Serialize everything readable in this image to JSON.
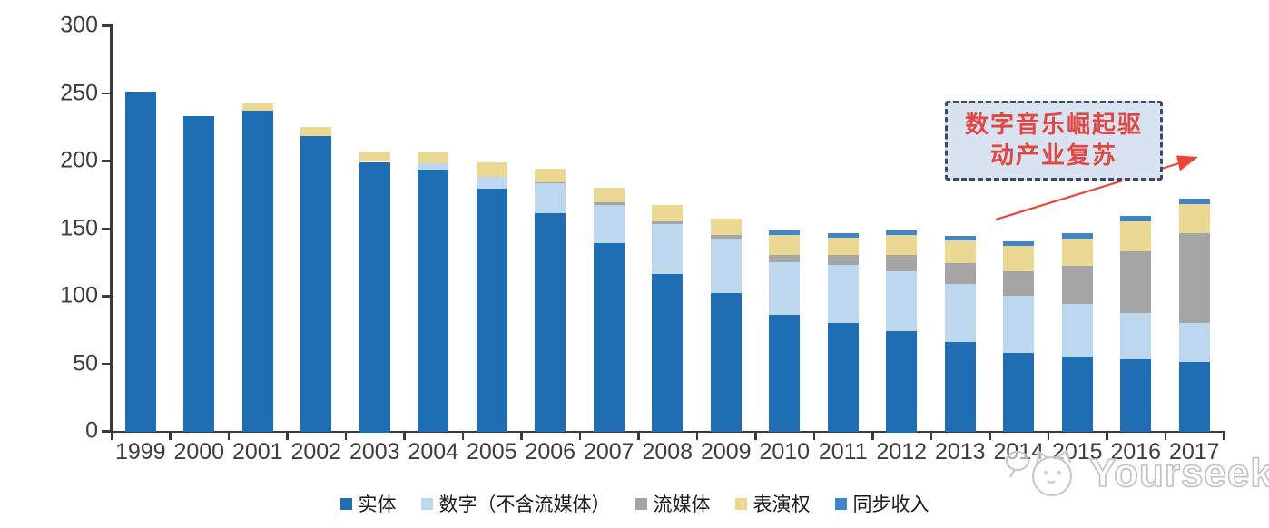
{
  "chart_data": {
    "type": "bar",
    "subtype": "stacked",
    "title": "",
    "xlabel": "",
    "ylabel": "",
    "ylim": [
      0,
      300
    ],
    "yticks": [
      0,
      50,
      100,
      150,
      200,
      250,
      300
    ],
    "grid": false,
    "legend_position": "bottom",
    "categories": [
      "1999",
      "2000",
      "2001",
      "2002",
      "2003",
      "2004",
      "2005",
      "2006",
      "2007",
      "2008",
      "2009",
      "2010",
      "2011",
      "2012",
      "2013",
      "2014",
      "2015",
      "2016",
      "2017"
    ],
    "series": [
      {
        "name": "实体",
        "color": "#1f6db3",
        "values": [
          252,
          234,
          238,
          219,
          200,
          194,
          180,
          162,
          140,
          117,
          103,
          87,
          81,
          75,
          67,
          59,
          56,
          54,
          52
        ]
      },
      {
        "name": "数字（不含流媒体）",
        "color": "#bdd7ee",
        "values": [
          0,
          0,
          0,
          0,
          0,
          5,
          9,
          22,
          28,
          37,
          40,
          39,
          43,
          44,
          43,
          42,
          39,
          34,
          29
        ]
      },
      {
        "name": "流媒体",
        "color": "#a5a5a5",
        "values": [
          0,
          0,
          0,
          0,
          0,
          0,
          0,
          1,
          2,
          2,
          3,
          5,
          7,
          12,
          15,
          18,
          28,
          46,
          66
        ]
      },
      {
        "name": "表演权",
        "color": "#ead893",
        "values": [
          0,
          0,
          5,
          7,
          8,
          8,
          11,
          10,
          11,
          12,
          12,
          15,
          13,
          15,
          17,
          19,
          20,
          22,
          22
        ]
      },
      {
        "name": "同步收入",
        "color": "#3e86c9",
        "values": [
          0,
          0,
          0,
          0,
          0,
          0,
          0,
          0,
          0,
          0,
          0,
          3,
          3,
          3,
          3,
          3,
          4,
          4,
          4
        ]
      }
    ],
    "axis_color": "#3a3a3a",
    "tick_label_color": "#3d3d3d"
  },
  "annotation": {
    "line1": "数字音乐崛起驱",
    "line2": "动产业复苏",
    "text_color": "#df4743",
    "box_fill": "#d9e2f0",
    "box_border": "#3e4a63",
    "arrow_color": "#ee4338"
  },
  "watermark": {
    "text": "Yourseeker"
  }
}
